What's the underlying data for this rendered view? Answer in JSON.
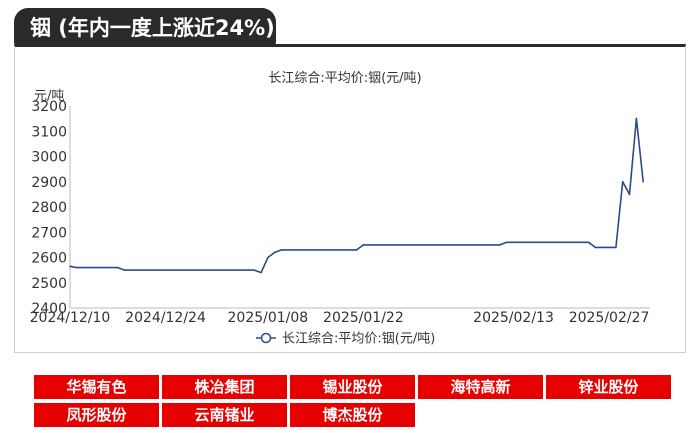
{
  "page_title": "铟 (年内一度上涨近24%)",
  "companies": [
    "华锡有色",
    "株冶集团",
    "锡业股份",
    "海特高新",
    "锌业股份",
    "凤形股份",
    "云南锗业",
    "博杰股份"
  ],
  "colors": {
    "line": "#2b4a8b",
    "chip": "#e60000",
    "tab": "#2a2a2a"
  },
  "chart_data": {
    "type": "line",
    "title": "长江综合:平均价:铟(元/吨)",
    "ylabel": "元/吨",
    "ylim": [
      2400,
      3200
    ],
    "yticks": [
      "2400",
      "2500",
      "2600",
      "2700",
      "2800",
      "2900",
      "3000",
      "3100",
      "3200"
    ],
    "xticks": [
      {
        "date": "2024-12-10",
        "label": "2024/12/10"
      },
      {
        "date": "2024-12-24",
        "label": "2024/12/24"
      },
      {
        "date": "2025-01-08",
        "label": "2025/01/08"
      },
      {
        "date": "2025-01-22",
        "label": "2025/01/22"
      },
      {
        "date": "2025-02-13",
        "label": "2025/02/13"
      },
      {
        "date": "2025-02-27",
        "label": "2025/02/27"
      }
    ],
    "xlim": [
      "2024-12-10",
      "2025-03-05"
    ],
    "grid": false,
    "legend_position": "bottom",
    "series": [
      {
        "name": "长江综合:平均价:铟(元/吨)",
        "points": [
          {
            "x": "2024-12-10",
            "y": 2565
          },
          {
            "x": "2024-12-11",
            "y": 2560
          },
          {
            "x": "2024-12-17",
            "y": 2560
          },
          {
            "x": "2024-12-18",
            "y": 2550
          },
          {
            "x": "2025-01-06",
            "y": 2550
          },
          {
            "x": "2025-01-07",
            "y": 2540
          },
          {
            "x": "2025-01-08",
            "y": 2600
          },
          {
            "x": "2025-01-09",
            "y": 2620
          },
          {
            "x": "2025-01-10",
            "y": 2630
          },
          {
            "x": "2025-01-21",
            "y": 2630
          },
          {
            "x": "2025-01-22",
            "y": 2650
          },
          {
            "x": "2025-02-11",
            "y": 2650
          },
          {
            "x": "2025-02-12",
            "y": 2660
          },
          {
            "x": "2025-02-24",
            "y": 2660
          },
          {
            "x": "2025-02-25",
            "y": 2640
          },
          {
            "x": "2025-02-28",
            "y": 2640
          },
          {
            "x": "2025-03-01",
            "y": 2900
          },
          {
            "x": "2025-03-02",
            "y": 2850
          },
          {
            "x": "2025-03-03",
            "y": 3150
          },
          {
            "x": "2025-03-04",
            "y": 2900
          }
        ]
      }
    ]
  }
}
